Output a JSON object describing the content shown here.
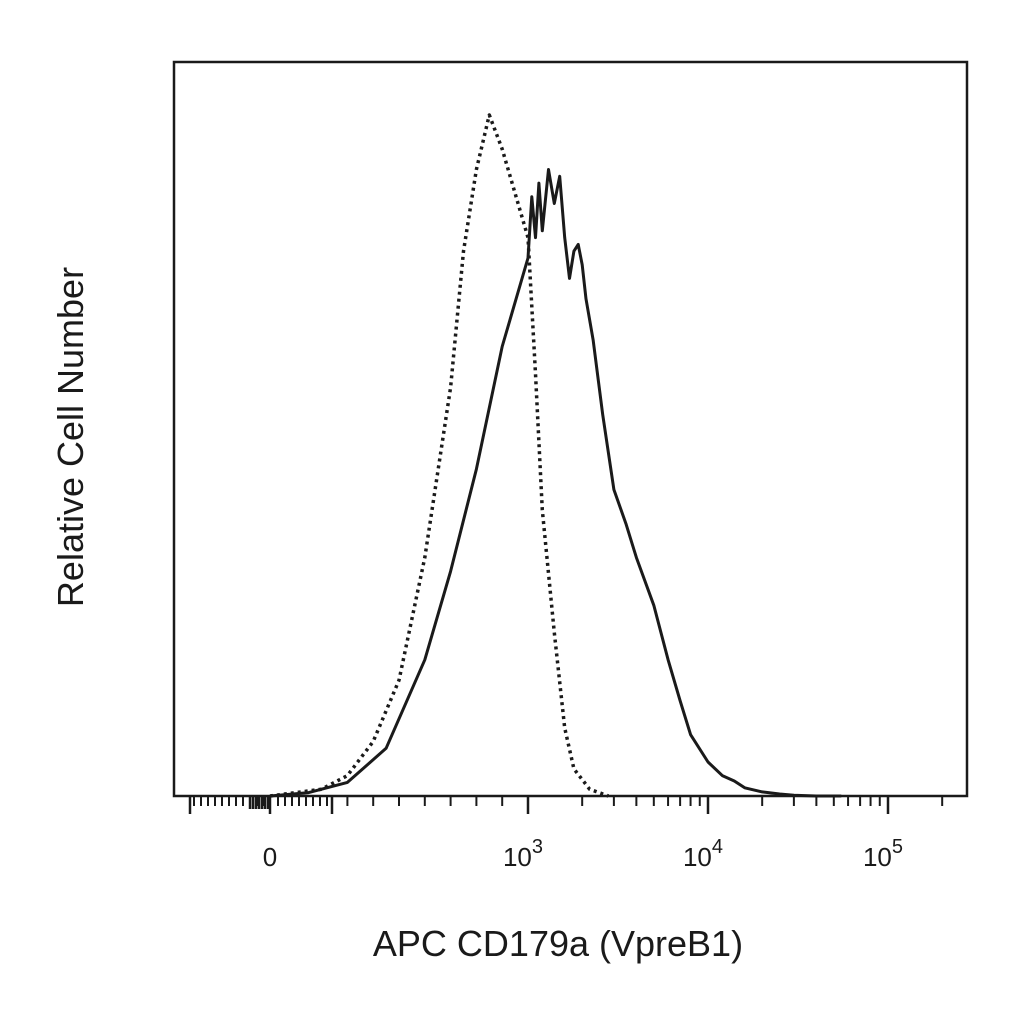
{
  "chart_data": {
    "type": "line",
    "title": "",
    "xlabel": "APC CD179a (VpreB1)",
    "ylabel": "Relative Cell Number",
    "x_scale": "biexponential",
    "x_tick_labels": [
      {
        "value": 0,
        "base": "0",
        "exp": ""
      },
      {
        "value": 1000,
        "base": "10",
        "exp": "3"
      },
      {
        "value": 10000,
        "base": "10",
        "exp": "4"
      },
      {
        "value": 100000,
        "base": "10",
        "exp": "5"
      }
    ],
    "y_ticks_shown": false,
    "grid": false,
    "legend": "none",
    "colors": {
      "line": "#1a1a1a",
      "frame": "#1a1a1a",
      "text": "#1a1a1a"
    },
    "series": [
      {
        "style": "dotted",
        "x": [
          0,
          200,
          300,
          400,
          500,
          600,
          700,
          750,
          800,
          850,
          900,
          1000,
          1100,
          1200,
          1400,
          1600,
          1800,
          2200,
          2800
        ],
        "y": [
          0,
          0.01,
          0.03,
          0.08,
          0.17,
          0.35,
          0.6,
          0.8,
          0.92,
          1.0,
          0.95,
          0.82,
          0.62,
          0.42,
          0.24,
          0.1,
          0.04,
          0.01,
          0
        ]
      },
      {
        "style": "solid",
        "x": [
          0,
          150,
          300,
          450,
          600,
          700,
          800,
          900,
          1000,
          1050,
          1100,
          1150,
          1200,
          1300,
          1400,
          1500,
          1600,
          1700,
          1800,
          1900,
          2000,
          2100,
          2300,
          2600,
          3000,
          3500,
          4000,
          5000,
          6000,
          7000,
          8000,
          10000,
          12000,
          14000,
          16000,
          20000,
          25000,
          30000,
          40000,
          55000
        ],
        "y": [
          0,
          0.005,
          0.02,
          0.07,
          0.2,
          0.33,
          0.48,
          0.66,
          0.79,
          0.88,
          0.82,
          0.9,
          0.83,
          0.92,
          0.87,
          0.91,
          0.82,
          0.76,
          0.8,
          0.81,
          0.78,
          0.73,
          0.67,
          0.56,
          0.45,
          0.4,
          0.35,
          0.28,
          0.2,
          0.14,
          0.09,
          0.05,
          0.03,
          0.022,
          0.012,
          0.006,
          0.003,
          0.001,
          0,
          0
        ]
      }
    ]
  }
}
